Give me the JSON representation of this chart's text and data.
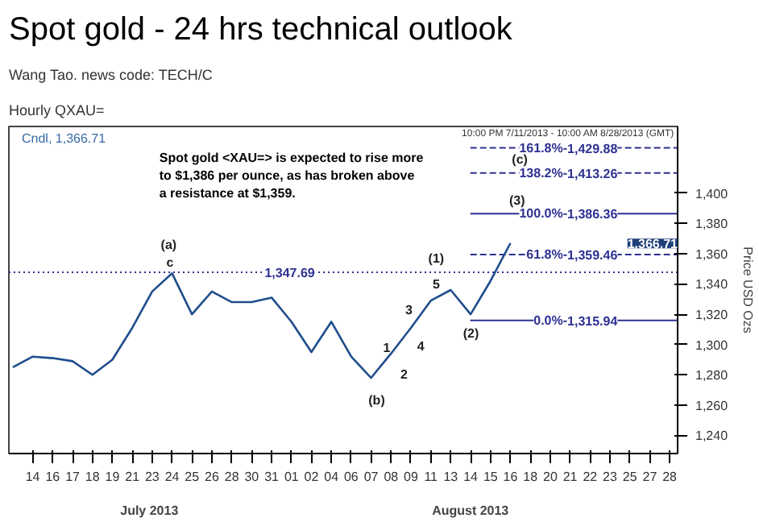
{
  "chart_data": {
    "type": "line",
    "title": "Spot gold - 24 hrs technical outlook",
    "subtitle": "Wang Tao.  news code: TECH/C",
    "ylabel": "Price USD Ozs",
    "categories": [
      null,
      "14",
      "16",
      "17",
      "18",
      "19",
      "21",
      "23",
      "24",
      "25",
      "26",
      "28",
      "30",
      "31",
      "01",
      "02",
      "04",
      "06",
      "07",
      "08",
      "09",
      "11",
      "13",
      "14",
      "15",
      "16",
      "18",
      "20",
      "21",
      "22",
      "23",
      "25",
      "27",
      "28"
    ],
    "series": [
      {
        "color": "#1f4e8c",
        "values": [
          1285,
          1292,
          1291,
          1289,
          1280,
          1290,
          1311,
          1335,
          1347,
          1320,
          1335,
          1328,
          1328,
          1331,
          1315,
          1295,
          1315,
          1292,
          1278,
          1294,
          1311,
          1329,
          1336,
          1320,
          1342,
          1367,
          null,
          null,
          null,
          null,
          null,
          null,
          null,
          null
        ]
      }
    ],
    "ylim": [
      1228,
      1444
    ],
    "yticks": [
      {
        "value": 1240,
        "label": "1,240"
      },
      {
        "value": 1260,
        "label": "1,260"
      },
      {
        "value": 1280,
        "label": "1,280"
      },
      {
        "value": 1300,
        "label": "1,300"
      },
      {
        "value": 1320,
        "label": "1,320"
      },
      {
        "value": 1340,
        "label": "1,340"
      },
      {
        "value": 1360,
        "label": "1,360"
      },
      {
        "value": 1380,
        "label": "1,380"
      },
      {
        "value": 1400,
        "label": "1,400"
      }
    ],
    "ref_lines": [
      {
        "axis": "y",
        "value": 1347.69,
        "label": "1,347.69",
        "color": "#2e3192",
        "line_style": "dotted"
      },
      {
        "axis": "y",
        "value": 1429.88,
        "label": "1,429.88",
        "color": "#2e3192",
        "line_style": "dashed"
      },
      {
        "axis": "y",
        "value": 1413.26,
        "label": "1,413.26",
        "color": "#2e3192",
        "line_style": "dashed"
      },
      {
        "axis": "y",
        "value": 1386.36,
        "label": "1,386.36",
        "color": "#2e3192",
        "line_style": "solid"
      },
      {
        "axis": "y",
        "value": 1359.46,
        "label": "1,359.46",
        "color": "#2e3192",
        "line_style": "dashed"
      },
      {
        "axis": "y",
        "value": 1315.94,
        "label": "1,315.94",
        "color": "#2e3192",
        "line_style": "solid"
      }
    ],
    "annotations": [
      "Hourly QXAU=",
      "10:00 PM 7/11/2013 - 10:00 AM 8/28/2013 (GMT)",
      "Cndl, 1,366.71",
      "Spot gold <XAU=> is expected to rise more\nto $1,386 per ounce, as has broken above\na resistance at $1,359.",
      "July 2013",
      "August 2013",
      "1,366.71",
      "161.8%-",
      "138.2%-",
      "100.0%-",
      "61.8%-",
      "0.0%-",
      "(a)",
      "c",
      "(b)",
      "1",
      "2",
      "3",
      "4",
      "5",
      "(1)",
      "(2)",
      "(3)",
      "(c)"
    ]
  }
}
